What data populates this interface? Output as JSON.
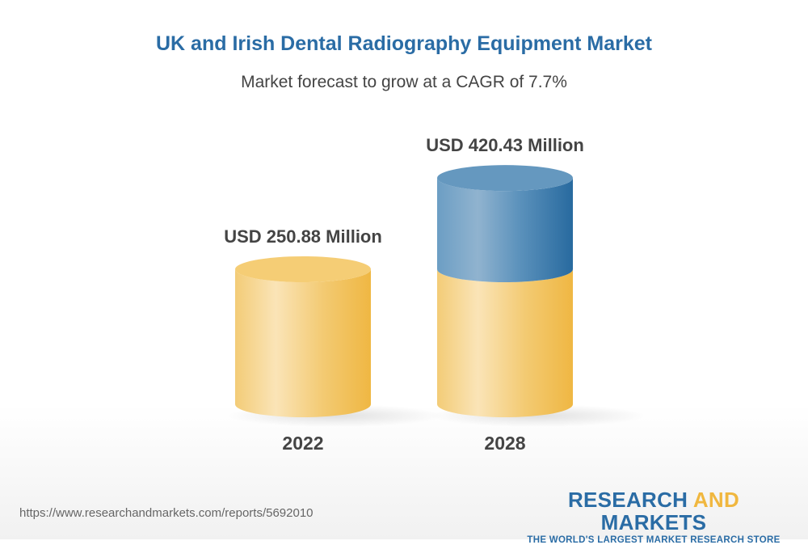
{
  "chart_data": {
    "type": "bar",
    "title": "UK and Irish Dental Radiography Equipment Market",
    "subtitle": "Market forecast to grow at a CAGR of 7.7%",
    "categories": [
      "2022",
      "2028"
    ],
    "values": [
      250.88,
      420.43
    ],
    "data_labels": [
      "USD 250.88 Million",
      "USD 420.43 Million"
    ],
    "xlabel": "",
    "ylabel": "",
    "grid": false,
    "style": "3d-cylinder",
    "colors": {
      "base": "#f2c15a",
      "growth": "#2f6fa3"
    }
  },
  "footer": {
    "url": "https://www.researchandmarkets.com/reports/5692010",
    "logo_part1": "RESEARCH ",
    "logo_part2": "AND",
    "logo_part3": " MARKETS",
    "logo_tagline": "THE WORLD'S LARGEST MARKET RESEARCH STORE"
  }
}
